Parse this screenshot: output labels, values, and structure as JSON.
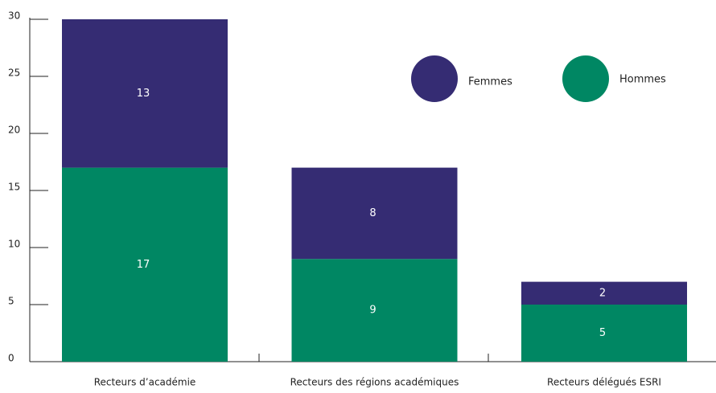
{
  "chart_data": {
    "type": "stacked_bar",
    "categories": [
      "Recteurs d’académie",
      "Recteurs des régions académiques",
      "Recteurs délégués ESRI"
    ],
    "series": [
      {
        "name": "Hommes",
        "color": "#008763",
        "values": [
          17,
          9,
          5
        ]
      },
      {
        "name": "Femmes",
        "color": "#352c73",
        "values": [
          13,
          8,
          2
        ]
      }
    ],
    "ylim": [
      0,
      30
    ],
    "yticks": [
      0,
      5,
      10,
      15,
      20,
      25,
      30
    ]
  }
}
